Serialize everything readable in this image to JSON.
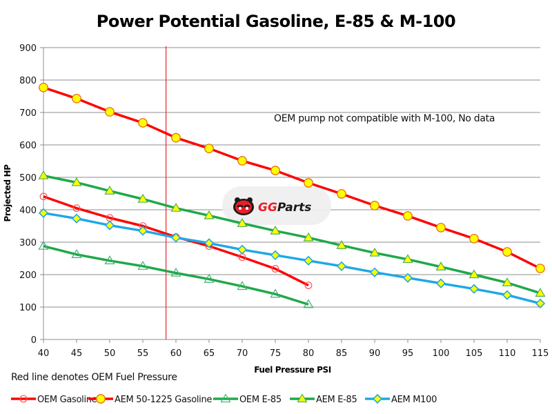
{
  "chart_data": {
    "type": "line",
    "title": "Power Potential Gasoline, E-85 & M-100",
    "xlabel": "Fuel Pressure PSI",
    "ylabel": "Projected HP",
    "x": [
      40,
      45,
      50,
      55,
      60,
      65,
      70,
      75,
      80,
      85,
      90,
      95,
      100,
      105,
      110,
      115
    ],
    "xlim": [
      40,
      115
    ],
    "ylim": [
      0,
      900
    ],
    "y_ticks": [
      0,
      100,
      200,
      300,
      400,
      500,
      600,
      700,
      800,
      900
    ],
    "x_ticks": [
      40,
      45,
      50,
      55,
      60,
      65,
      70,
      75,
      80,
      85,
      90,
      95,
      100,
      105,
      110,
      115
    ],
    "grid": "horizontal",
    "legend_position": "bottom",
    "series": [
      {
        "name": "OEM Gasoline",
        "color": "#ff0000",
        "marker": "circle-open",
        "marker_fill": "none",
        "marker_stroke": "#ff5050",
        "values": [
          441,
          405,
          375,
          350,
          316,
          288,
          254,
          218,
          167
        ]
      },
      {
        "name": "AEM 50-1225 Gasoline",
        "color": "#ff0000",
        "marker": "circle-filled",
        "marker_fill": "#ffff00",
        "marker_stroke": "#e86a10",
        "values": [
          777,
          743,
          702,
          668,
          622,
          589,
          551,
          521,
          483,
          449,
          413,
          381,
          345,
          311,
          270,
          219
        ]
      },
      {
        "name": "OEM E-85",
        "color": "#1fa84a",
        "marker": "triangle-open",
        "marker_fill": "none",
        "marker_stroke": "#3cb371",
        "values": [
          288,
          262,
          243,
          226,
          205,
          186,
          164,
          140,
          108
        ]
      },
      {
        "name": "AEM E-85",
        "color": "#1fa84a",
        "marker": "triangle-filled",
        "marker_fill": "#ffff00",
        "marker_stroke": "#4caf50",
        "values": [
          505,
          484,
          458,
          433,
          405,
          382,
          358,
          335,
          314,
          290,
          267,
          247,
          224,
          200,
          175,
          143
        ]
      },
      {
        "name": "AEM M100",
        "color": "#1ea8e6",
        "marker": "diamond-filled",
        "marker_fill": "#ffff00",
        "marker_stroke": "#1ea8e6",
        "values": [
          390,
          373,
          352,
          335,
          314,
          297,
          277,
          260,
          243,
          226,
          207,
          190,
          173,
          156,
          137,
          111
        ]
      }
    ],
    "reference_line": {
      "x": 58.5,
      "color": "#e8242a",
      "label": "OEM Fuel Pressure"
    },
    "annotations": [
      {
        "text": "OEM pump not compatible with M-100, No data"
      },
      {
        "text": "Red line denotes OEM Fuel Pressure"
      }
    ]
  },
  "watermark": {
    "text": "GGParts",
    "brand_color": "#e8202a"
  }
}
